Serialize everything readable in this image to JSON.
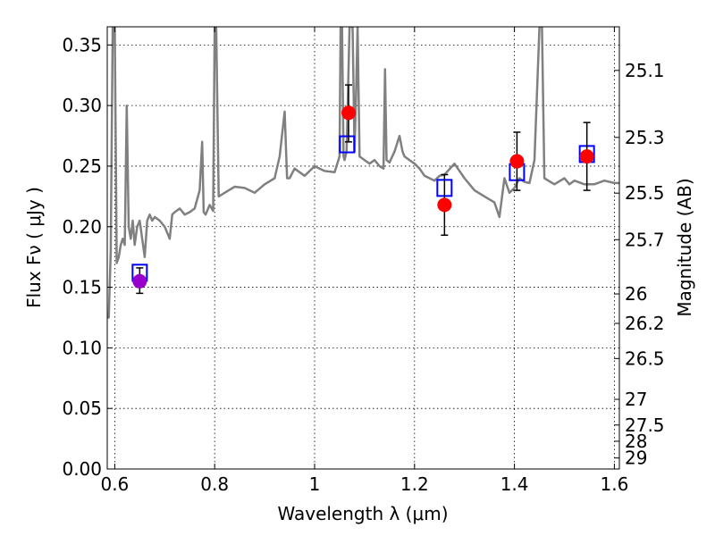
{
  "chart_data": {
    "type": "scatter",
    "title": "",
    "xlabel": "Wavelength  λ (μm)",
    "ylabel": "Flux  Fν  ( μJy )",
    "y2label": "Magnitude (AB)",
    "xlim": [
      0.585,
      1.61
    ],
    "ylim": [
      0.0,
      0.365
    ],
    "grid": true,
    "legend": "none",
    "x_ticks": [
      {
        "value": 0.6,
        "label": "0.6"
      },
      {
        "value": 0.8,
        "label": "0.8"
      },
      {
        "value": 1.0,
        "label": "1"
      },
      {
        "value": 1.2,
        "label": "1.2"
      },
      {
        "value": 1.4,
        "label": "1.4"
      },
      {
        "value": 1.6,
        "label": "1.6"
      }
    ],
    "y_ticks": [
      {
        "value": 0.0,
        "label": "0.00"
      },
      {
        "value": 0.05,
        "label": "0.05"
      },
      {
        "value": 0.1,
        "label": "0.10"
      },
      {
        "value": 0.15,
        "label": "0.15"
      },
      {
        "value": 0.2,
        "label": "0.20"
      },
      {
        "value": 0.25,
        "label": "0.25"
      },
      {
        "value": 0.3,
        "label": "0.30"
      },
      {
        "value": 0.35,
        "label": "0.35"
      }
    ],
    "mag_ticks": [
      {
        "flux": 0.329,
        "label": "25.1"
      },
      {
        "flux": 0.2737,
        "label": "25.3"
      },
      {
        "flux": 0.2277,
        "label": "25.5"
      },
      {
        "flux": 0.1893,
        "label": "25.7"
      },
      {
        "flux": 0.1445,
        "label": "26"
      },
      {
        "flux": 0.1202,
        "label": "26.2"
      },
      {
        "flux": 0.0912,
        "label": "26.5"
      },
      {
        "flux": 0.0575,
        "label": "27"
      },
      {
        "flux": 0.0363,
        "label": "27.5"
      },
      {
        "flux": 0.0229,
        "label": "28"
      },
      {
        "flux": 0.0091,
        "label": "29"
      }
    ],
    "series": [
      {
        "kind": "model-spectrum",
        "color": "#808080",
        "x": [
          0.585,
          0.588,
          0.592,
          0.596,
          0.6,
          0.604,
          0.608,
          0.612,
          0.616,
          0.62,
          0.624,
          0.628,
          0.632,
          0.636,
          0.64,
          0.645,
          0.65,
          0.655,
          0.66,
          0.665,
          0.67,
          0.675,
          0.68,
          0.69,
          0.7,
          0.71,
          0.715,
          0.72,
          0.73,
          0.74,
          0.75,
          0.76,
          0.77,
          0.775,
          0.778,
          0.782,
          0.79,
          0.797,
          0.8,
          0.803,
          0.808,
          0.82,
          0.84,
          0.86,
          0.88,
          0.9,
          0.92,
          0.93,
          0.94,
          0.945,
          0.95,
          0.96,
          0.98,
          1.0,
          1.01,
          1.02,
          1.04,
          1.05,
          1.052,
          1.055,
          1.058,
          1.06,
          1.064,
          1.07,
          1.076,
          1.08,
          1.083,
          1.086,
          1.09,
          1.1,
          1.11,
          1.12,
          1.13,
          1.138,
          1.141,
          1.144,
          1.15,
          1.16,
          1.17,
          1.176,
          1.18,
          1.19,
          1.2,
          1.21,
          1.22,
          1.24,
          1.25,
          1.26,
          1.28,
          1.3,
          1.32,
          1.34,
          1.36,
          1.37,
          1.38,
          1.39,
          1.4,
          1.41,
          1.42,
          1.43,
          1.44,
          1.45,
          1.455,
          1.46,
          1.48,
          1.5,
          1.51,
          1.52,
          1.54,
          1.56,
          1.58,
          1.6,
          1.61
        ],
        "y": [
          0.125,
          0.125,
          0.18,
          0.365,
          0.365,
          0.17,
          0.175,
          0.185,
          0.19,
          0.185,
          0.3,
          0.2,
          0.19,
          0.205,
          0.185,
          0.2,
          0.205,
          0.19,
          0.175,
          0.205,
          0.21,
          0.205,
          0.208,
          0.205,
          0.2,
          0.19,
          0.21,
          0.212,
          0.215,
          0.21,
          0.212,
          0.215,
          0.23,
          0.27,
          0.212,
          0.21,
          0.218,
          0.213,
          0.365,
          0.365,
          0.225,
          0.228,
          0.233,
          0.232,
          0.228,
          0.235,
          0.24,
          0.258,
          0.295,
          0.24,
          0.24,
          0.248,
          0.242,
          0.25,
          0.248,
          0.246,
          0.245,
          0.258,
          0.365,
          0.365,
          0.258,
          0.255,
          0.262,
          0.365,
          0.365,
          0.262,
          0.31,
          0.365,
          0.258,
          0.255,
          0.252,
          0.255,
          0.25,
          0.248,
          0.33,
          0.255,
          0.253,
          0.262,
          0.275,
          0.262,
          0.258,
          0.255,
          0.252,
          0.248,
          0.242,
          0.238,
          0.242,
          0.243,
          0.252,
          0.24,
          0.23,
          0.225,
          0.22,
          0.208,
          0.24,
          0.228,
          0.232,
          0.24,
          0.237,
          0.236,
          0.255,
          0.365,
          0.365,
          0.24,
          0.235,
          0.24,
          0.235,
          0.238,
          0.235,
          0.235,
          0.238,
          0.236,
          0.236
        ]
      },
      {
        "kind": "model-photometry",
        "marker": "open-square",
        "color": "#0000ff",
        "x": [
          0.65,
          1.065,
          1.26,
          1.405,
          1.545
        ],
        "y": [
          0.162,
          0.268,
          0.232,
          0.245,
          0.26
        ]
      },
      {
        "kind": "observed-photometry",
        "marker": "filled-circle",
        "color": "#ff0000",
        "x": [
          1.068,
          1.26,
          1.405,
          1.545
        ],
        "y": [
          0.294,
          0.218,
          0.254,
          0.258
        ],
        "yerr_low": [
          0.024,
          0.025,
          0.024,
          0.028
        ],
        "yerr_high": [
          0.023,
          0.025,
          0.024,
          0.028
        ]
      },
      {
        "kind": "observed-photometry",
        "marker": "filled-circle",
        "color": "#9900cc",
        "x": [
          0.65
        ],
        "y": [
          0.155
        ],
        "yerr_low": [
          0.01
        ],
        "yerr_high": [
          0.011
        ]
      }
    ]
  }
}
